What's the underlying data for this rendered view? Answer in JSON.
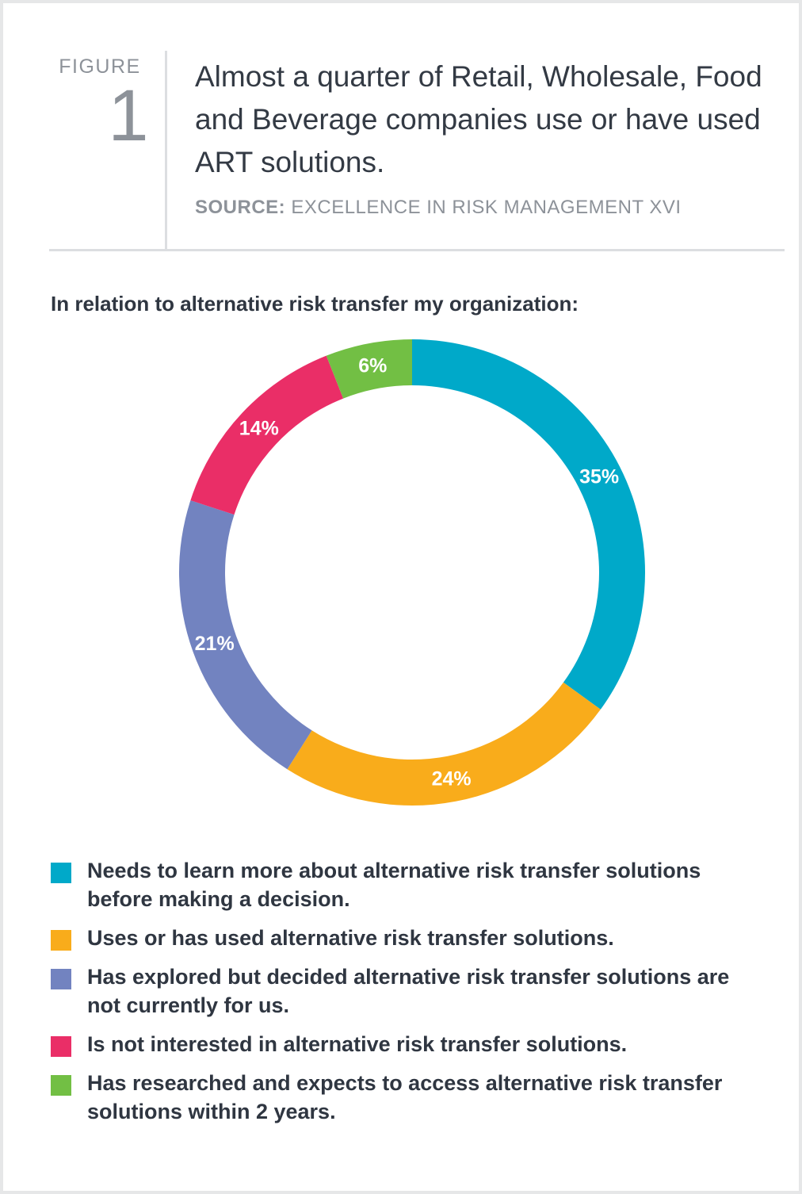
{
  "figure": {
    "label": "FIGURE",
    "number": "1"
  },
  "headline": "Almost a quarter of Retail, Wholesale, Food and Beverage companies use or have used ART solutions.",
  "source": {
    "label": "SOURCE:",
    "text": "EXCELLENCE IN RISK MANAGEMENT XVI"
  },
  "chart_data": {
    "type": "pie",
    "style": "donut",
    "title": "In relation to alternative risk transfer my organization:",
    "start": "top",
    "direction": "clockwise",
    "series": [
      {
        "name": "Needs to learn more about alternative risk transfer solutions before making a decision.",
        "value": 35,
        "label": "35%",
        "color": "#00a9c9"
      },
      {
        "name": "Uses or has used alternative risk transfer solutions.",
        "value": 24,
        "label": "24%",
        "color": "#f9ac1b"
      },
      {
        "name": "Has explored but decided alternative risk transfer solutions are not currently for us.",
        "value": 21,
        "label": "21%",
        "color": "#7283c0"
      },
      {
        "name": "Is not interested in alternative risk transfer solutions.",
        "value": 14,
        "label": "14%",
        "color": "#ea2e67"
      },
      {
        "name": "Has researched and expects to access alternative risk transfer solutions within 2 years.",
        "value": 6,
        "label": "6%",
        "color": "#72bf44"
      }
    ],
    "legend_position": "bottom"
  }
}
